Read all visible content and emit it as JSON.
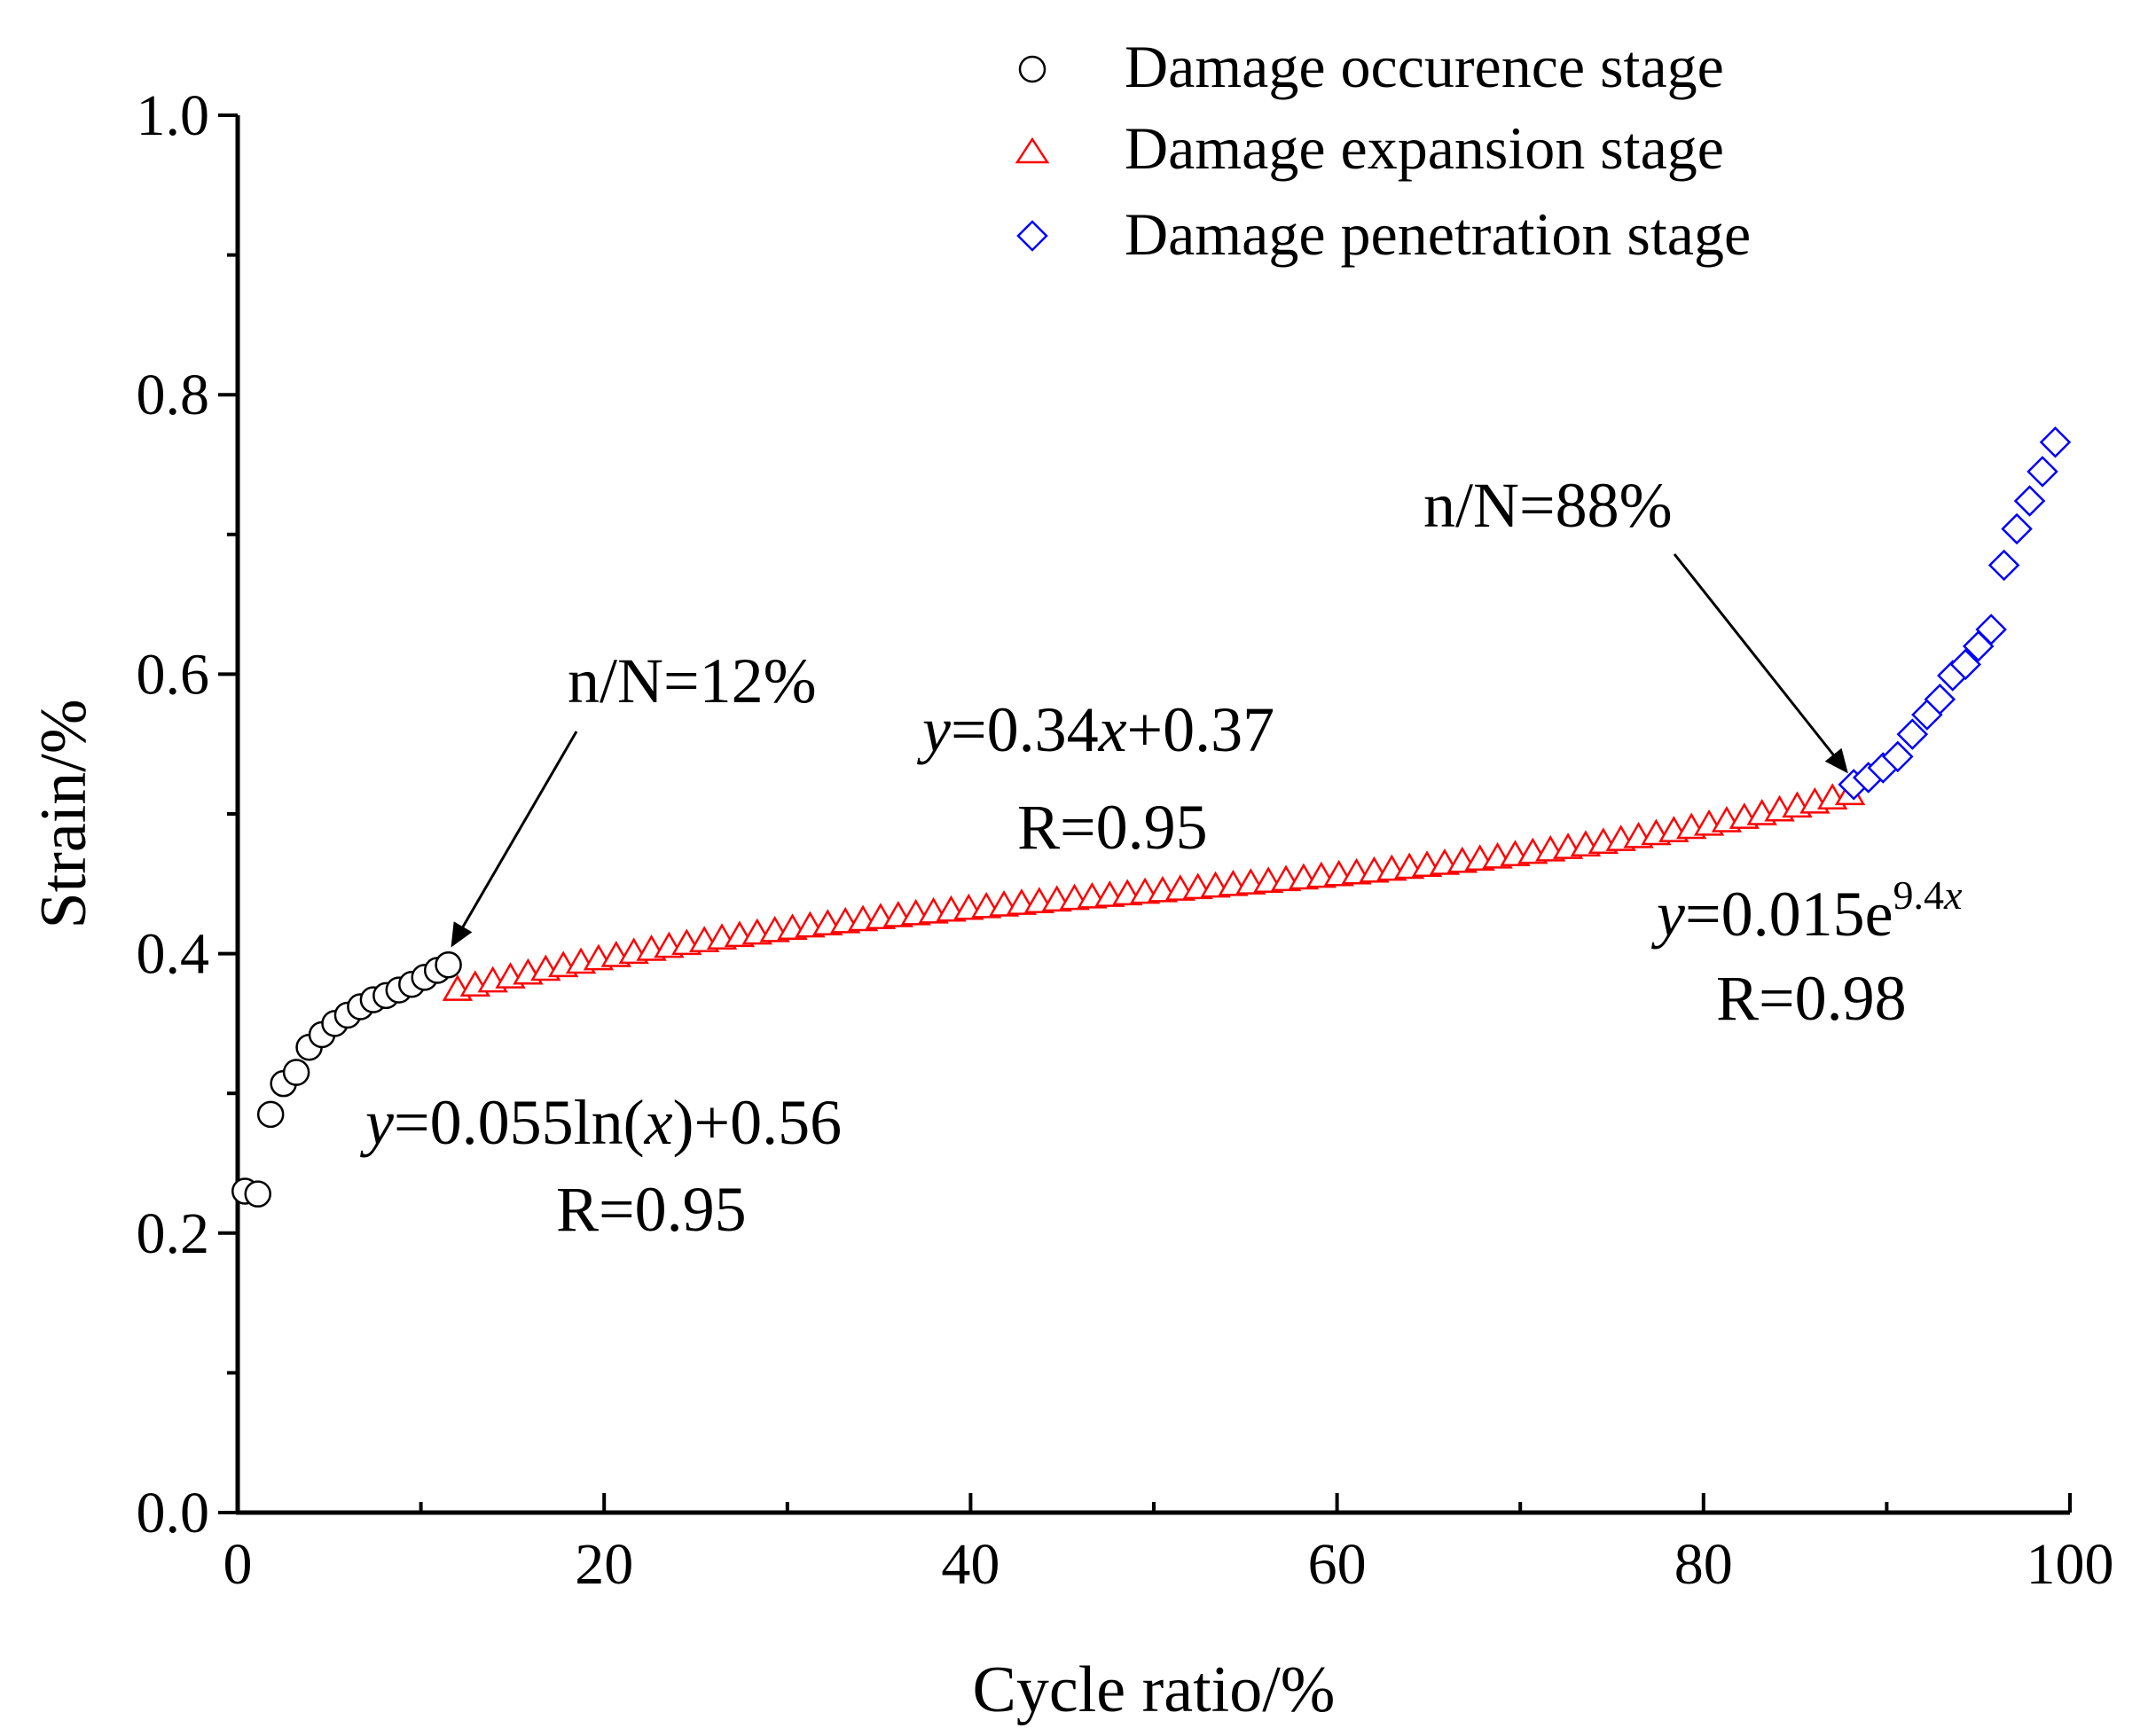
{
  "chart_data": {
    "type": "scatter",
    "xlabel": "Cycle ratio/%",
    "ylabel": "Strain/%",
    "xlim": [
      0,
      100
    ],
    "ylim": [
      0.0,
      1.0
    ],
    "x_ticks": [
      0,
      20,
      40,
      60,
      80,
      100
    ],
    "x_tick_labels": [
      "0",
      "20",
      "40",
      "60",
      "80",
      "100"
    ],
    "y_ticks": [
      0.0,
      0.2,
      0.4,
      0.6,
      0.8,
      1.0
    ],
    "y_tick_labels": [
      "0.0",
      "0.2",
      "0.4",
      "0.6",
      "0.8",
      "1.0"
    ],
    "x_minor_step": 10,
    "y_minor_step": 0.1,
    "grid": false,
    "legend_position": "top-right",
    "series": [
      {
        "name": "Damage occurence stage",
        "marker": "circle",
        "color": "#000000",
        "x": [
          0.4,
          1.1,
          1.8,
          2.5,
          3.2,
          3.9,
          4.6,
          5.3,
          6.0,
          6.7,
          7.4,
          8.1,
          8.8,
          9.5,
          10.2,
          10.9,
          11.5
        ],
        "y": [
          0.23,
          0.228,
          0.285,
          0.307,
          0.315,
          0.333,
          0.342,
          0.35,
          0.356,
          0.362,
          0.367,
          0.37,
          0.374,
          0.378,
          0.383,
          0.388,
          0.392
        ]
      },
      {
        "name": "Damage expansion stage",
        "marker": "triangle",
        "color": "#ff0000",
        "x": [
          12,
          88
        ],
        "y": [
          0.391,
          0.519
        ],
        "points": 80
      },
      {
        "name": "Damage penetration stage",
        "marker": "diamond",
        "color": "#0000ff",
        "x": [
          88.2,
          89.0,
          89.8,
          90.6,
          91.4,
          92.2,
          92.9,
          93.6,
          94.3,
          95.0,
          95.7,
          96.4,
          97.1,
          97.8,
          98.5,
          99.2
        ],
        "y": [
          0.521,
          0.526,
          0.533,
          0.541,
          0.557,
          0.571,
          0.582,
          0.599,
          0.607,
          0.62,
          0.632,
          0.678,
          0.704,
          0.724,
          0.745,
          0.766
        ]
      }
    ],
    "annotations": {
      "start_label": "n/N=12%",
      "end_label": "n/N=88%",
      "fit_occurrence": {
        "lead": "y",
        "mid": "=0.055ln(",
        "var": "x",
        "tail": ")+0.56",
        "r": "R=0.95"
      },
      "fit_expansion": {
        "lead": "y",
        "mid": "=0.34",
        "var": "x",
        "tail": "+0.37",
        "r": "R=0.95"
      },
      "fit_penetration": {
        "lead": "y",
        "mid": "=0.015e",
        "sup": "9.4",
        "sup_var": "x",
        "r": "R=0.98"
      }
    }
  }
}
